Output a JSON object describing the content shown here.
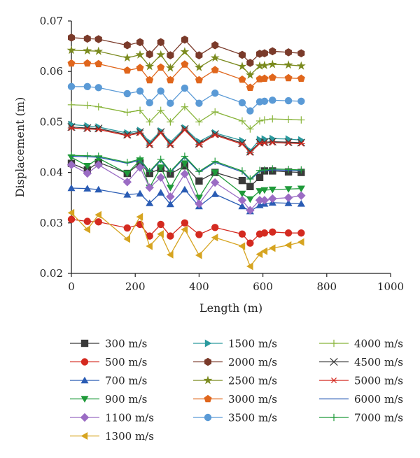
{
  "chart_data": {
    "type": "line",
    "title": "",
    "xlabel": "Length (m)",
    "ylabel": "Displacement (m)",
    "xlim": [
      0,
      1000
    ],
    "ylim": [
      0.02,
      0.07
    ],
    "xticks": [
      0,
      200,
      400,
      600,
      800,
      1000
    ],
    "yticks": [
      0.02,
      0.03,
      0.04,
      0.05,
      0.06,
      0.07
    ],
    "xtick_labels": [
      "0",
      "200",
      "400",
      "600",
      "800",
      "1000"
    ],
    "ytick_labels": [
      "0.02",
      "0.03",
      "0.04",
      "0.05",
      "0.06",
      "0.07"
    ],
    "grid": false,
    "legend_position": "bottom",
    "x": [
      0,
      50,
      85,
      175,
      215,
      245,
      280,
      310,
      355,
      400,
      450,
      535,
      560,
      590,
      605,
      630,
      680,
      720
    ],
    "series": [
      {
        "name": "300 m/s",
        "marker": "square",
        "color": "#3a3a3a",
        "values": [
          0.0418,
          0.0405,
          0.042,
          0.0398,
          0.0418,
          0.0398,
          0.0408,
          0.0397,
          0.0413,
          0.0383,
          0.04,
          0.0384,
          0.0372,
          0.039,
          0.0403,
          0.0403,
          0.0401,
          0.04
        ]
      },
      {
        "name": "500 m/s",
        "marker": "circle",
        "color": "#d42a20",
        "values": [
          0.0307,
          0.0303,
          0.0302,
          0.029,
          0.0297,
          0.0274,
          0.0297,
          0.0274,
          0.03,
          0.0277,
          0.0291,
          0.0278,
          0.026,
          0.0278,
          0.028,
          0.0282,
          0.028,
          0.028
        ]
      },
      {
        "name": "700 m/s",
        "marker": "triangle-up",
        "color": "#2a5cb4",
        "values": [
          0.0369,
          0.0368,
          0.0366,
          0.0356,
          0.0358,
          0.0339,
          0.036,
          0.0337,
          0.0366,
          0.0333,
          0.0357,
          0.0333,
          0.0323,
          0.0335,
          0.0338,
          0.034,
          0.0339,
          0.0338
        ]
      },
      {
        "name": "900 m/s",
        "marker": "triangle-down",
        "color": "#1f9a3a",
        "values": [
          0.043,
          0.0413,
          0.0428,
          0.0398,
          0.0424,
          0.037,
          0.041,
          0.037,
          0.0418,
          0.035,
          0.04,
          0.0358,
          0.0347,
          0.0363,
          0.0365,
          0.0366,
          0.0367,
          0.0368
        ]
      },
      {
        "name": "1100 m/s",
        "marker": "diamond",
        "color": "#9b6cc4",
        "values": [
          0.0415,
          0.0398,
          0.0415,
          0.0381,
          0.041,
          0.037,
          0.039,
          0.0352,
          0.0397,
          0.0338,
          0.038,
          0.0345,
          0.0325,
          0.0345,
          0.0345,
          0.0348,
          0.035,
          0.0354
        ]
      },
      {
        "name": "1300 m/s",
        "marker": "triangle-left",
        "color": "#d6a420",
        "values": [
          0.032,
          0.0287,
          0.0316,
          0.0268,
          0.0312,
          0.0254,
          0.0278,
          0.0237,
          0.0287,
          0.0236,
          0.0271,
          0.0254,
          0.0214,
          0.0238,
          0.0244,
          0.025,
          0.0256,
          0.0262
        ]
      },
      {
        "name": "1500 m/s",
        "marker": "triangle-right",
        "color": "#2a9a9e",
        "values": [
          0.0495,
          0.0492,
          0.049,
          0.0478,
          0.0483,
          0.046,
          0.0482,
          0.046,
          0.0488,
          0.0461,
          0.0478,
          0.0463,
          0.0443,
          0.0465,
          0.0466,
          0.0467,
          0.0466,
          0.0464
        ]
      },
      {
        "name": "2000 m/s",
        "marker": "hexagon",
        "color": "#7a3a2a",
        "values": [
          0.0667,
          0.0665,
          0.0664,
          0.0652,
          0.0658,
          0.0634,
          0.0658,
          0.0632,
          0.0663,
          0.0632,
          0.0652,
          0.0633,
          0.0617,
          0.0635,
          0.0636,
          0.064,
          0.0638,
          0.0636
        ]
      },
      {
        "name": "2500 m/s",
        "marker": "star",
        "color": "#7a8a1e",
        "values": [
          0.0642,
          0.0641,
          0.064,
          0.0627,
          0.0633,
          0.061,
          0.0633,
          0.0607,
          0.0639,
          0.0608,
          0.0627,
          0.061,
          0.0593,
          0.0611,
          0.0612,
          0.0614,
          0.0613,
          0.0611
        ]
      },
      {
        "name": "3000 m/s",
        "marker": "pentagon",
        "color": "#e0661c",
        "values": [
          0.0616,
          0.0616,
          0.0615,
          0.0602,
          0.0607,
          0.0583,
          0.0608,
          0.0583,
          0.0614,
          0.0583,
          0.0603,
          0.0584,
          0.0568,
          0.0585,
          0.0586,
          0.0588,
          0.0587,
          0.0586
        ]
      },
      {
        "name": "3500 m/s",
        "marker": "circle",
        "color": "#5a9ad6",
        "values": [
          0.057,
          0.057,
          0.0568,
          0.0556,
          0.0561,
          0.0538,
          0.0561,
          0.0537,
          0.0567,
          0.0537,
          0.0557,
          0.0538,
          0.0522,
          0.054,
          0.0541,
          0.0543,
          0.0542,
          0.0541
        ]
      },
      {
        "name": "4000 m/s",
        "marker": "plus",
        "color": "#88b43a",
        "values": [
          0.0534,
          0.0533,
          0.053,
          0.0519,
          0.0523,
          0.05,
          0.0523,
          0.05,
          0.053,
          0.05,
          0.052,
          0.0502,
          0.0486,
          0.0502,
          0.0504,
          0.0506,
          0.0505,
          0.0504
        ]
      },
      {
        "name": "4500 m/s",
        "marker": "x",
        "color": "#3a3a3a",
        "values": [
          0.049,
          0.0488,
          0.0487,
          0.0475,
          0.048,
          0.0456,
          0.048,
          0.0456,
          0.0486,
          0.0457,
          0.0476,
          0.0458,
          0.0441,
          0.0459,
          0.046,
          0.0461,
          0.046,
          0.0459
        ]
      },
      {
        "name": "5000 m/s",
        "marker": "asterisk",
        "color": "#d42a20",
        "values": [
          0.0488,
          0.0486,
          0.0485,
          0.0473,
          0.0478,
          0.0454,
          0.0478,
          0.0454,
          0.0484,
          0.0455,
          0.0474,
          0.0456,
          0.0439,
          0.0457,
          0.0458,
          0.0459,
          0.0458,
          0.0457
        ]
      },
      {
        "name": "6000 m/s",
        "marker": "none",
        "color": "#2a5cb4",
        "values": [
          0.0432,
          0.0431,
          0.043,
          0.0418,
          0.0424,
          0.04,
          0.0424,
          0.04,
          0.043,
          0.04,
          0.042,
          0.0401,
          0.0385,
          0.0402,
          0.0403,
          0.0405,
          0.0404,
          0.0403
        ]
      },
      {
        "name": "7000 m/s",
        "marker": "plus",
        "color": "#1f9a3a",
        "values": [
          0.0434,
          0.0433,
          0.0432,
          0.042,
          0.0426,
          0.0402,
          0.0426,
          0.0402,
          0.0432,
          0.0402,
          0.0422,
          0.0403,
          0.0387,
          0.0404,
          0.0405,
          0.0407,
          0.0406,
          0.0405
        ]
      }
    ],
    "legend_order": [
      [
        "300 m/s",
        "1500 m/s",
        "4000 m/s"
      ],
      [
        "500 m/s",
        "2000 m/s",
        "4500 m/s"
      ],
      [
        "700 m/s",
        "2500 m/s",
        "5000 m/s"
      ],
      [
        "900 m/s",
        "3000 m/s",
        "6000 m/s"
      ],
      [
        "1100 m/s",
        "3500 m/s",
        "7000 m/s"
      ],
      [
        "1300 m/s"
      ]
    ]
  }
}
